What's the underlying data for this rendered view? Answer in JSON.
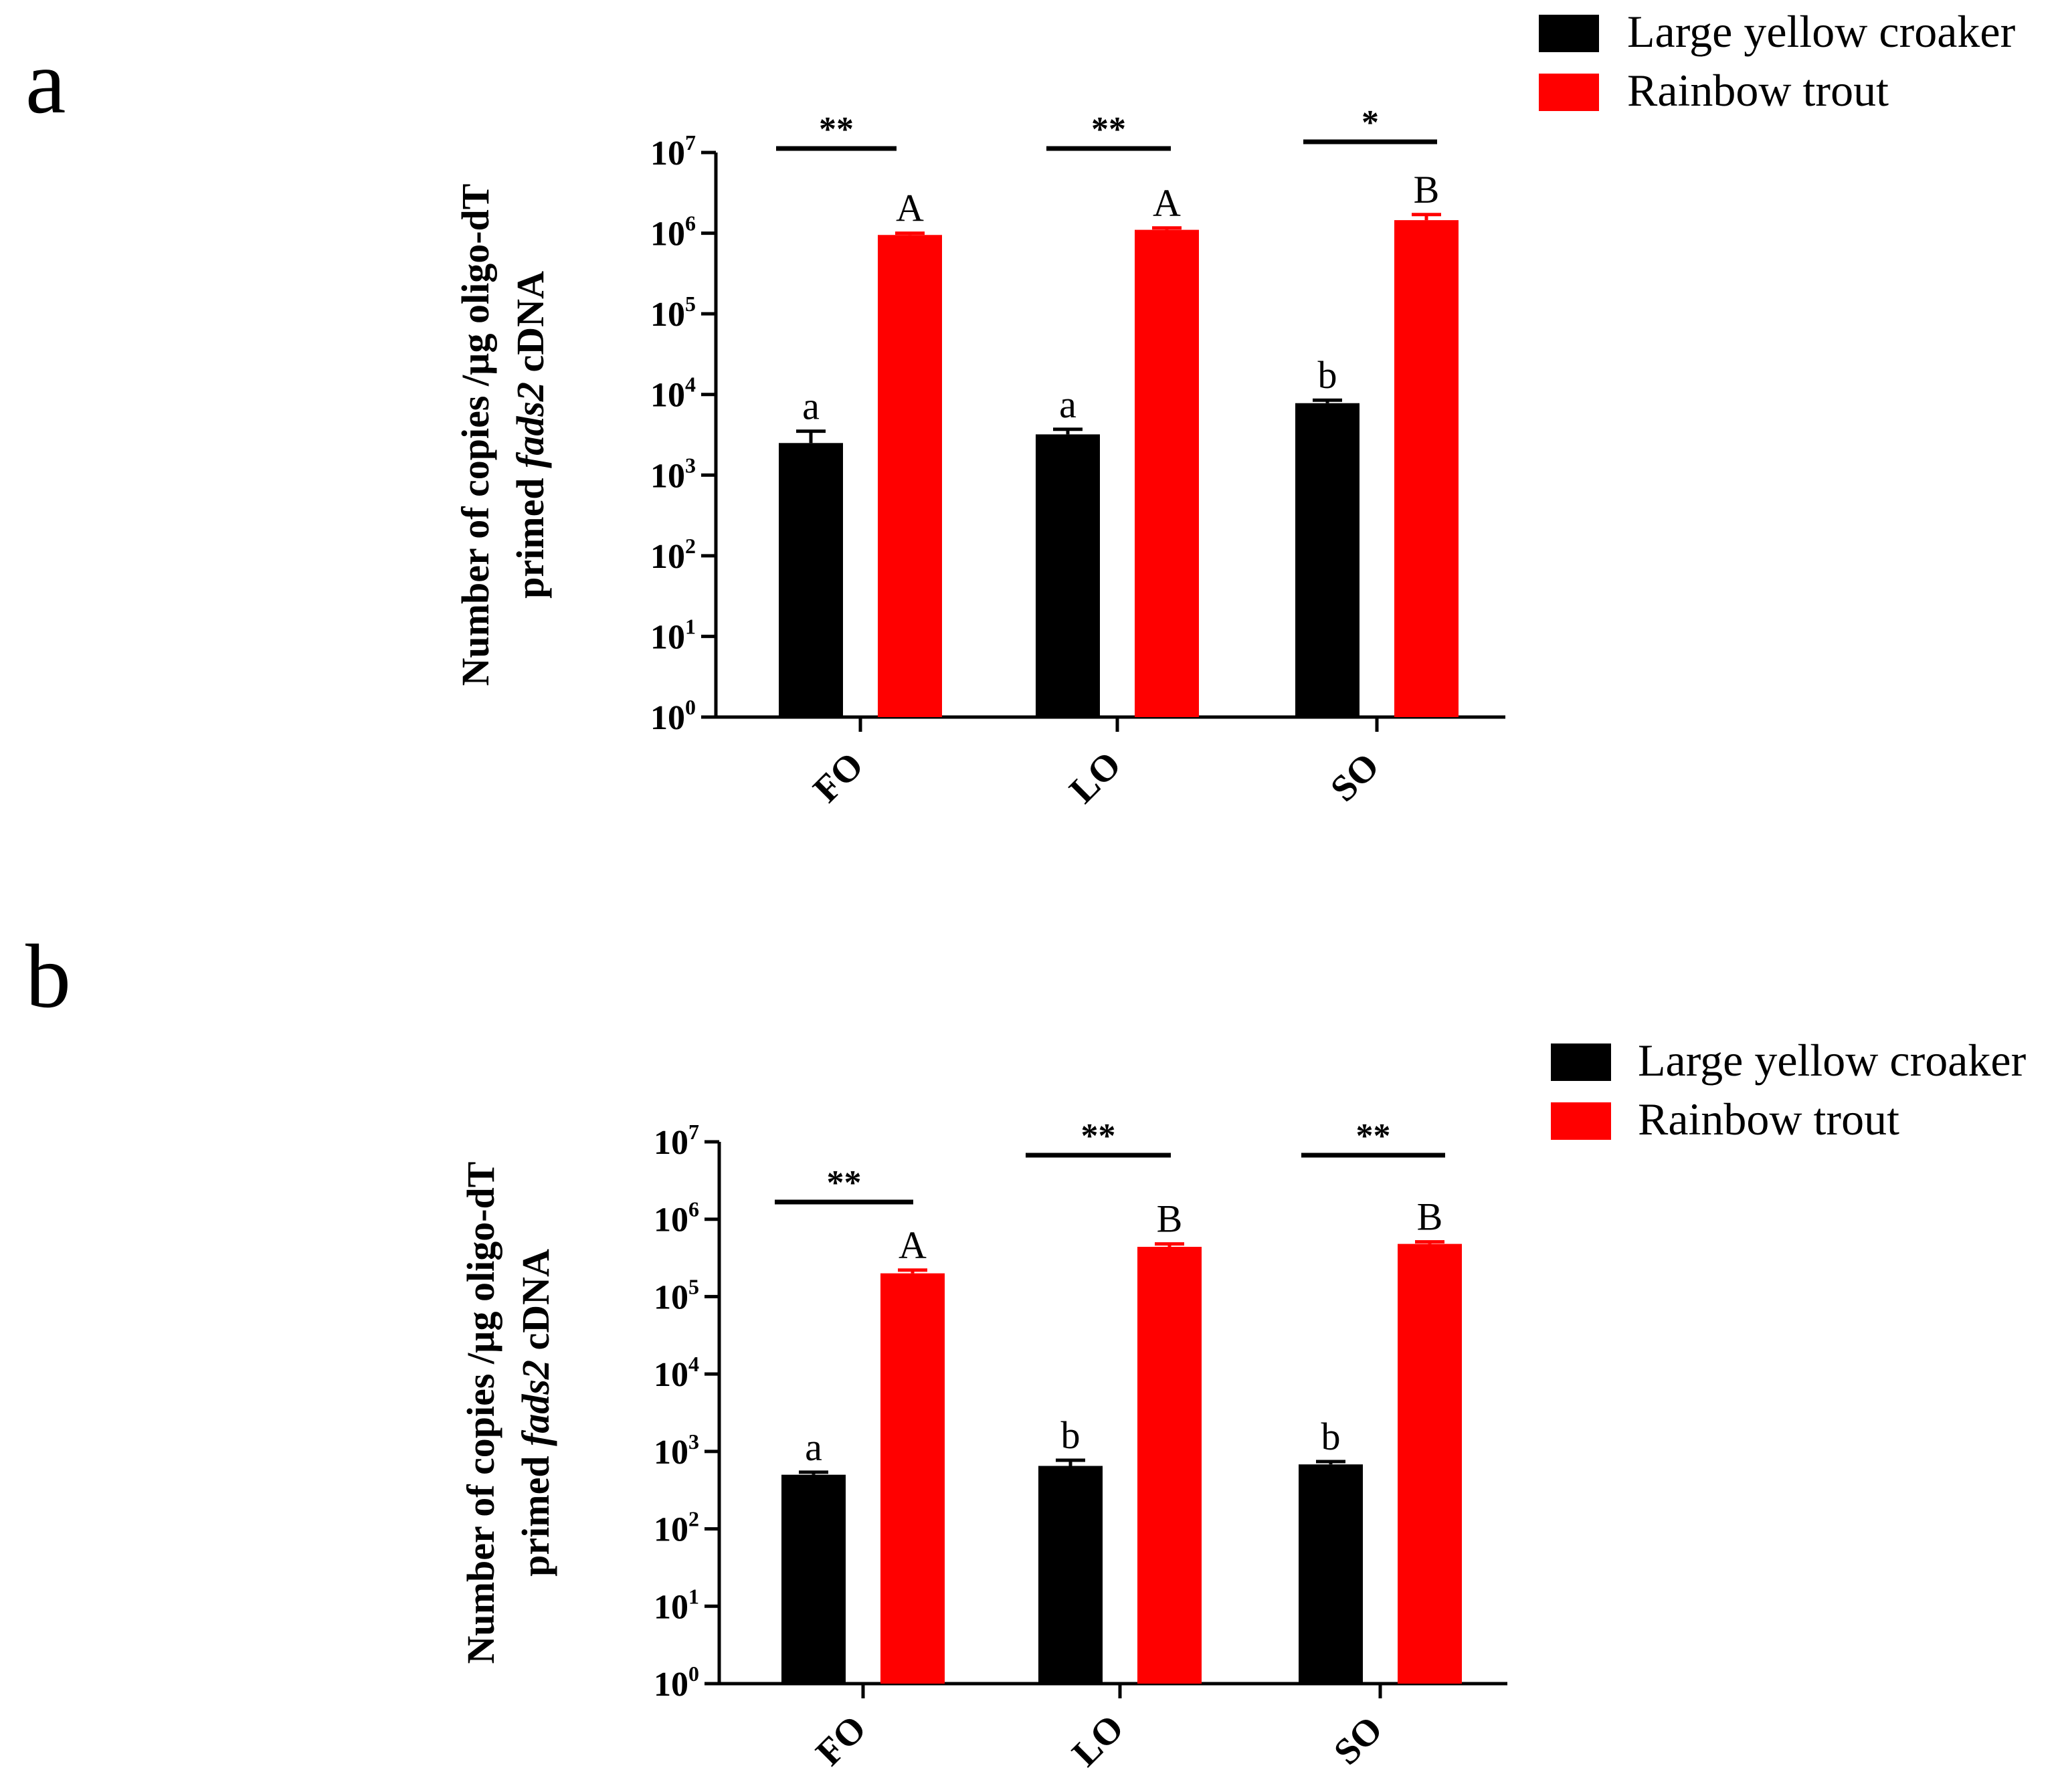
{
  "chart_data": [
    {
      "panel_label": "a",
      "type": "bar",
      "scale": "log",
      "categories": [
        "FO",
        "LO",
        "SO"
      ],
      "series": [
        {
          "name": "Large yellow croaker",
          "color": "#000000",
          "values": [
            2500,
            3200,
            7800
          ],
          "errors": [
            1000,
            500,
            700
          ],
          "letters": [
            "a",
            "a",
            "b"
          ]
        },
        {
          "name": "Rainbow trout",
          "color": "#ff0000",
          "values": [
            950000,
            1100000,
            1450000
          ],
          "errors": [
            50000,
            60000,
            250000
          ],
          "letters": [
            "A",
            "A",
            "B"
          ]
        }
      ],
      "significance": [
        "**",
        "**",
        "*"
      ],
      "ylabel_line1": "Number of copies /µg oligo-dT",
      "ylabel_line2_pre": "primed ",
      "ylabel_line2_gene": "fads2",
      "ylabel_line2_post": " cDNA",
      "ylim": [
        1,
        10000000
      ],
      "ytick_exponents": [
        "0",
        "1",
        "2",
        "3",
        "4",
        "5",
        "6",
        "7"
      ],
      "ytick_base": "10",
      "legend_position": "top-right"
    },
    {
      "panel_label": "b",
      "type": "bar",
      "scale": "log",
      "categories": [
        "FO",
        "LO",
        "SO"
      ],
      "series": [
        {
          "name": "Large yellow croaker",
          "color": "#000000",
          "values": [
            500,
            650,
            680
          ],
          "errors": [
            40,
            120,
            60
          ],
          "letters": [
            "a",
            "b",
            "b"
          ]
        },
        {
          "name": "Rainbow trout",
          "color": "#ff0000",
          "values": [
            200000,
            440000,
            480000
          ],
          "errors": [
            20000,
            40000,
            30000
          ],
          "letters": [
            "A",
            "B",
            "B"
          ]
        }
      ],
      "significance": [
        "**",
        "**",
        "**"
      ],
      "ylabel_line1": "Number of copies /µg oligo-dT",
      "ylabel_line2_pre": "primed ",
      "ylabel_line2_gene": "fads2",
      "ylabel_line2_post": " cDNA",
      "ylim": [
        1,
        10000000
      ],
      "ytick_exponents": [
        "0",
        "1",
        "2",
        "3",
        "4",
        "5",
        "6",
        "7"
      ],
      "ytick_base": "10",
      "legend_position": "top-right"
    }
  ]
}
